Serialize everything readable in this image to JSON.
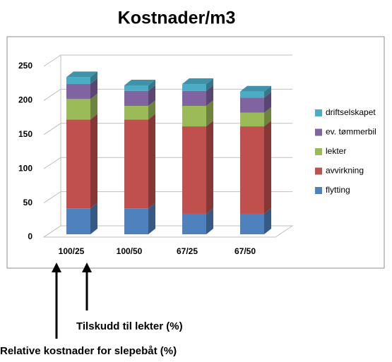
{
  "chart_data": {
    "type": "bar",
    "stacked": true,
    "title": "Kostnader/m3",
    "categories": [
      "100/25",
      "100/50",
      "67/25",
      "67/50"
    ],
    "series": [
      {
        "name": "flytting",
        "color": "#4f81bd",
        "values": [
          38,
          38,
          30,
          30
        ]
      },
      {
        "name": "avvirkning",
        "color": "#c0504d",
        "values": [
          130,
          130,
          128,
          128
        ]
      },
      {
        "name": "lekter",
        "color": "#9bbb59",
        "values": [
          30,
          20,
          30,
          20
        ]
      },
      {
        "name": "ev. tømmerbil",
        "color": "#8064a2",
        "values": [
          22,
          22,
          22,
          22
        ]
      },
      {
        "name": "driftselskapet",
        "color": "#4bacc6",
        "values": [
          10,
          8,
          10,
          9
        ]
      }
    ],
    "ylim": [
      0,
      250
    ],
    "yticks": [
      0,
      50,
      100,
      150,
      200,
      250
    ],
    "grid": true,
    "legend": "right",
    "annotations": [
      "Tilskudd til lekter (%)",
      "Relative kostnader for slepebåt (%)"
    ]
  }
}
